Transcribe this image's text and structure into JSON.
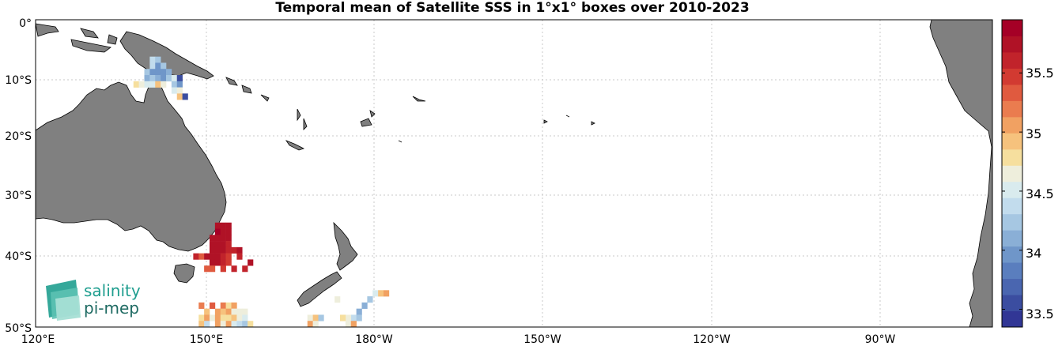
{
  "title": "Temporal mean of Satellite SSS in 1°x1° boxes over 2010-2023",
  "x_ticks": [
    "120°E",
    "150°E",
    "180°W",
    "150°W",
    "120°W",
    "90°W"
  ],
  "y_ticks": [
    "0°",
    "10°S",
    "20°S",
    "30°S",
    "40°S",
    "50°S"
  ],
  "colorbar": {
    "ticks": [
      "35.5",
      "35",
      "34.5",
      "34",
      "33.5"
    ],
    "range": [
      33.35,
      35.95
    ],
    "colors": [
      "#313695",
      "#3b4da0",
      "#4a66b0",
      "#5a7ebe",
      "#6f96c9",
      "#8aafd6",
      "#a6c7e2",
      "#c2dced",
      "#d9ebee",
      "#eeeedc",
      "#f6df9e",
      "#f6c27d",
      "#f1a162",
      "#ea7c4f",
      "#e05a3f",
      "#d23a31",
      "#c1232b",
      "#b01226",
      "#a50026"
    ]
  },
  "logo": {
    "line1": "salinity",
    "line2": "pi-mep",
    "color": "#1f9e8f"
  },
  "map": {
    "lon_range": [
      120,
      296
    ],
    "lat_range": [
      0,
      -50
    ],
    "grid": true,
    "land_color": "#808080"
  },
  "chart_data": {
    "type": "heatmap",
    "title": "Temporal mean of Satellite SSS in 1°x1° boxes over 2010-2023",
    "x_unit": "degrees longitude",
    "y_unit": "degrees latitude",
    "value_unit": "SSS",
    "boxes": [
      [
        141.5,
        -6.5,
        34.4
      ],
      [
        142.5,
        -6.5,
        34.3
      ],
      [
        141.5,
        -7.5,
        34.4
      ],
      [
        142.5,
        -7.5,
        34.0
      ],
      [
        143.5,
        -7.5,
        34.2
      ],
      [
        140.5,
        -8.5,
        34.2
      ],
      [
        141.5,
        -8.5,
        34.0
      ],
      [
        142.5,
        -8.5,
        33.9
      ],
      [
        143.5,
        -8.5,
        33.9
      ],
      [
        144.5,
        -8.5,
        34.1
      ],
      [
        140.5,
        -9.5,
        34.1
      ],
      [
        141.5,
        -9.5,
        34.2
      ],
      [
        142.5,
        -9.5,
        34.1
      ],
      [
        143.5,
        -9.5,
        33.9
      ],
      [
        144.5,
        -9.5,
        34.2
      ],
      [
        145.5,
        -9.5,
        34.5
      ],
      [
        146.5,
        -9.5,
        33.6
      ],
      [
        138.5,
        -10.5,
        34.8
      ],
      [
        139.5,
        -10.5,
        34.6
      ],
      [
        140.5,
        -10.5,
        34.5
      ],
      [
        141.5,
        -10.5,
        34.5
      ],
      [
        142.5,
        -10.5,
        34.9
      ],
      [
        143.5,
        -10.5,
        34.6
      ],
      [
        145.5,
        -10.5,
        34.3
      ],
      [
        146.5,
        -10.5,
        34.0
      ],
      [
        145.5,
        -11.5,
        34.5
      ],
      [
        146.5,
        -11.5,
        34.7
      ],
      [
        146.5,
        -12.5,
        34.9
      ],
      [
        147.5,
        -12.5,
        33.6
      ],
      [
        153.5,
        -33.5,
        35.8
      ],
      [
        154.5,
        -33.5,
        35.8
      ],
      [
        155.5,
        -33.5,
        35.8
      ],
      [
        153.5,
        -34.5,
        35.9
      ],
      [
        154.5,
        -34.5,
        35.8
      ],
      [
        155.5,
        -34.5,
        35.7
      ],
      [
        152.5,
        -35.5,
        35.7
      ],
      [
        153.5,
        -35.5,
        35.8
      ],
      [
        154.5,
        -35.5,
        35.8
      ],
      [
        155.5,
        -35.5,
        35.7
      ],
      [
        152.5,
        -36.5,
        35.8
      ],
      [
        153.5,
        -36.5,
        35.7
      ],
      [
        154.5,
        -36.5,
        35.8
      ],
      [
        155.5,
        -36.5,
        35.6
      ],
      [
        152.5,
        -37.5,
        35.7
      ],
      [
        153.5,
        -37.5,
        35.8
      ],
      [
        154.5,
        -37.5,
        35.7
      ],
      [
        155.5,
        -37.5,
        35.6
      ],
      [
        156.5,
        -37.5,
        35.6
      ],
      [
        157.5,
        -37.5,
        35.7
      ],
      [
        149.5,
        -38.5,
        35.6
      ],
      [
        150.5,
        -38.5,
        35.3
      ],
      [
        151.5,
        -38.5,
        35.7
      ],
      [
        152.5,
        -38.5,
        35.8
      ],
      [
        153.5,
        -38.5,
        35.7
      ],
      [
        154.5,
        -38.5,
        35.6
      ],
      [
        155.5,
        -38.5,
        35.5
      ],
      [
        157.5,
        -38.5,
        35.6
      ],
      [
        152.5,
        -39.5,
        35.8
      ],
      [
        153.5,
        -39.5,
        35.7
      ],
      [
        154.5,
        -39.5,
        35.6
      ],
      [
        155.5,
        -39.5,
        35.5
      ],
      [
        159.5,
        -39.5,
        35.8
      ],
      [
        151.5,
        -40.5,
        35.4
      ],
      [
        152.5,
        -40.5,
        35.3
      ],
      [
        154.5,
        -40.5,
        35.5
      ],
      [
        156.5,
        -40.5,
        35.6
      ],
      [
        158.5,
        -40.5,
        35.6
      ],
      [
        150.5,
        -46.5,
        35.2
      ],
      [
        152.5,
        -46.5,
        35.4
      ],
      [
        154.5,
        -46.5,
        35.2
      ],
      [
        155.5,
        -46.5,
        34.8
      ],
      [
        156.5,
        -46.5,
        35.0
      ],
      [
        151.5,
        -47.5,
        34.9
      ],
      [
        153.5,
        -47.5,
        35.0
      ],
      [
        154.5,
        -47.5,
        34.9
      ],
      [
        155.5,
        -47.5,
        35.1
      ],
      [
        156.5,
        -47.5,
        34.7
      ],
      [
        157.5,
        -47.5,
        34.6
      ],
      [
        158.5,
        -47.5,
        34.7
      ],
      [
        150.5,
        -48.5,
        34.8
      ],
      [
        151.5,
        -48.5,
        35.0
      ],
      [
        152.5,
        -48.5,
        34.7
      ],
      [
        153.5,
        -48.5,
        35.0
      ],
      [
        154.5,
        -48.5,
        34.8
      ],
      [
        155.5,
        -48.5,
        34.8
      ],
      [
        156.5,
        -48.5,
        34.9
      ],
      [
        157.5,
        -48.5,
        34.6
      ],
      [
        158.5,
        -48.5,
        34.5
      ],
      [
        150.5,
        -49.5,
        34.9
      ],
      [
        151.5,
        -49.5,
        34.4
      ],
      [
        153.5,
        -49.5,
        35.0
      ],
      [
        154.5,
        -49.5,
        34.6
      ],
      [
        155.5,
        -49.5,
        35.0
      ],
      [
        156.5,
        -49.5,
        34.5
      ],
      [
        157.5,
        -49.5,
        34.4
      ],
      [
        158.5,
        -49.5,
        34.2
      ],
      [
        159.5,
        -49.5,
        34.8
      ],
      [
        175.5,
        -45.5,
        34.6
      ],
      [
        170.5,
        -48.5,
        34.7
      ],
      [
        171.5,
        -48.5,
        34.9
      ],
      [
        172.5,
        -48.5,
        34.3
      ],
      [
        170.5,
        -49.5,
        35.1
      ],
      [
        171.5,
        -49.5,
        34.6
      ],
      [
        182.5,
        -44.5,
        34.5
      ],
      [
        183.5,
        -44.5,
        34.9
      ],
      [
        184.5,
        -44.5,
        35.0
      ],
      [
        181.5,
        -45.5,
        34.3
      ],
      [
        180.5,
        -46.5,
        34.1
      ],
      [
        179.5,
        -47.5,
        34.1
      ],
      [
        178.5,
        -48.5,
        34.4
      ],
      [
        179.5,
        -48.5,
        34.3
      ],
      [
        177.5,
        -48.5,
        34.6
      ],
      [
        176.5,
        -48.5,
        34.8
      ],
      [
        177.5,
        -49.5,
        34.7
      ],
      [
        178.5,
        -49.5,
        35.0
      ]
    ]
  }
}
